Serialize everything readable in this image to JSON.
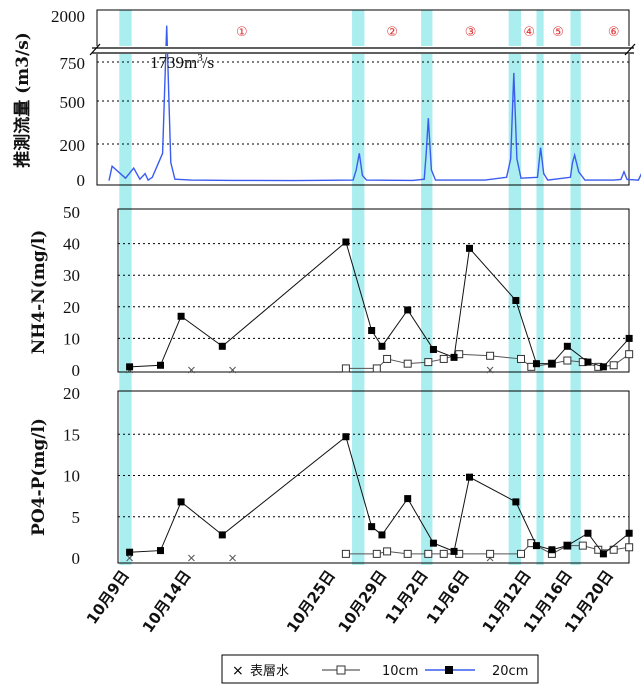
{
  "chart_data": [
    {
      "type": "line",
      "ylabel": "推測流量 (m3/s)",
      "yticks": [
        "0",
        "200",
        "500",
        "750",
        "2000"
      ],
      "annotation": {
        "value": "1739",
        "unit_base": "m",
        "unit_exp": "3",
        "unit_tail": "/s"
      },
      "periods": [
        "①",
        "②",
        "③",
        "④",
        "⑤",
        "⑥"
      ],
      "series": [
        {
          "values": [
            [
              0,
              2
            ],
            [
              0.3,
              80
            ],
            [
              1.6,
              15
            ],
            [
              2.4,
              70
            ],
            [
              3.0,
              10
            ],
            [
              3.5,
              40
            ],
            [
              3.8,
              5
            ],
            [
              4.2,
              20
            ],
            [
              5.2,
              150
            ],
            [
              5.6,
              1739
            ],
            [
              6.0,
              100
            ],
            [
              6.4,
              10
            ],
            [
              8.0,
              5
            ],
            [
              12,
              3
            ],
            [
              18,
              2
            ],
            [
              23.7,
              5
            ],
            [
              24.0,
              60
            ],
            [
              24.3,
              150
            ],
            [
              24.6,
              30
            ],
            [
              25.0,
              5
            ],
            [
              29.5,
              3
            ],
            [
              30.6,
              10
            ],
            [
              30.8,
              150
            ],
            [
              31.0,
              380
            ],
            [
              31.3,
              60
            ],
            [
              31.7,
              5
            ],
            [
              36.5,
              5
            ],
            [
              38.6,
              20
            ],
            [
              39.0,
              120
            ],
            [
              39.3,
              680
            ],
            [
              39.6,
              120
            ],
            [
              40.0,
              15
            ],
            [
              41.6,
              20
            ],
            [
              41.9,
              180
            ],
            [
              42.2,
              40
            ],
            [
              42.6,
              5
            ],
            [
              44.8,
              20
            ],
            [
              45.0,
              100
            ],
            [
              45.2,
              140
            ],
            [
              45.6,
              50
            ],
            [
              46.2,
              5
            ],
            [
              49.0,
              5
            ],
            [
              49.7,
              8
            ],
            [
              50.0,
              50
            ],
            [
              50.3,
              8
            ],
            [
              51.4,
              5
            ],
            [
              51.7,
              40
            ],
            [
              52.0,
              5
            ]
          ]
        }
      ]
    },
    {
      "type": "line",
      "ylabel": "NH4-N(mg/l)",
      "ylim": [
        0,
        50
      ],
      "yticks": [
        "0",
        "10",
        "20",
        "30",
        "40",
        "50"
      ],
      "series": [
        {
          "values": [
            [
              2,
              0
            ],
            [
              8,
              0
            ],
            [
              12,
              0
            ],
            [
              37,
              0
            ]
          ]
        },
        {
          "values": [
            [
              23,
              0.5
            ],
            [
              26,
              0.5
            ],
            [
              27,
              3.5
            ],
            [
              29,
              2
            ],
            [
              31,
              2.5
            ],
            [
              32.5,
              3.5
            ],
            [
              34,
              5
            ],
            [
              37,
              4.5
            ],
            [
              40,
              3.5
            ],
            [
              41,
              1
            ],
            [
              43,
              2
            ],
            [
              44.5,
              3
            ],
            [
              46,
              2.5
            ],
            [
              47.5,
              1
            ],
            [
              49,
              1.5
            ],
            [
              50.5,
              5
            ]
          ]
        },
        {
          "values": [
            [
              2,
              1
            ],
            [
              5,
              1.5
            ],
            [
              7,
              17
            ],
            [
              11,
              7.5
            ],
            [
              23,
              40.5
            ],
            [
              25.5,
              12.5
            ],
            [
              26.5,
              7.5
            ],
            [
              29,
              19
            ],
            [
              31.5,
              6.5
            ],
            [
              33.5,
              4
            ],
            [
              35,
              38.5
            ],
            [
              39.5,
              22
            ],
            [
              41.5,
              2
            ],
            [
              43,
              2
            ],
            [
              44.5,
              7.5
            ],
            [
              46.5,
              2.5
            ],
            [
              48,
              1
            ],
            [
              50.5,
              10
            ]
          ]
        }
      ]
    },
    {
      "type": "line",
      "ylabel": "PO4-P(mg/l)",
      "ylim": [
        0,
        20
      ],
      "yticks": [
        "0",
        "5",
        "10",
        "15",
        "20"
      ],
      "series": [
        {
          "values": [
            [
              2,
              0
            ],
            [
              8,
              0
            ],
            [
              12,
              0
            ],
            [
              37,
              0
            ]
          ]
        },
        {
          "values": [
            [
              23,
              0.5
            ],
            [
              26,
              0.5
            ],
            [
              27,
              0.8
            ],
            [
              29,
              0.5
            ],
            [
              31,
              0.5
            ],
            [
              32.5,
              0.5
            ],
            [
              34,
              0.5
            ],
            [
              37,
              0.5
            ],
            [
              40,
              0.5
            ],
            [
              41,
              1.8
            ],
            [
              43,
              0.5
            ],
            [
              44.5,
              1.5
            ],
            [
              46,
              1.5
            ],
            [
              47.5,
              1
            ],
            [
              49,
              1
            ],
            [
              50.5,
              1.3
            ]
          ]
        },
        {
          "values": [
            [
              2,
              0.7
            ],
            [
              5,
              0.9
            ],
            [
              7,
              6.8
            ],
            [
              11,
              2.8
            ],
            [
              23,
              14.7
            ],
            [
              25.5,
              3.8
            ],
            [
              26.5,
              2.8
            ],
            [
              29,
              7.2
            ],
            [
              31.5,
              1.8
            ],
            [
              33.5,
              0.8
            ],
            [
              35,
              9.8
            ],
            [
              39.5,
              6.8
            ],
            [
              41.5,
              1.5
            ],
            [
              43,
              1
            ],
            [
              44.5,
              1.5
            ],
            [
              46.5,
              3
            ],
            [
              48,
              0.5
            ],
            [
              50.5,
              3
            ]
          ]
        }
      ]
    }
  ],
  "xticks": [
    "10月9日",
    "10月14日",
    "10月25日",
    "10月29日",
    "11月2日",
    "11月6日",
    "11月12日",
    "11月16日",
    "11月20日"
  ],
  "legend": {
    "entries": [
      "表層水",
      "10cm",
      "20cm"
    ]
  },
  "colors": {
    "highlight": "#aaeef0",
    "flow_line": "#3a5cf0",
    "period_label": "#e03030"
  }
}
